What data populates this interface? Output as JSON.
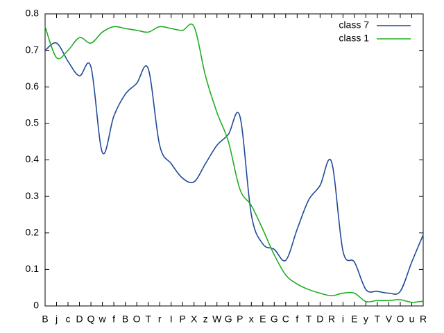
{
  "chart_data": {
    "type": "line",
    "categories": [
      "B",
      "j",
      "c",
      "D",
      "Q",
      "w",
      "f",
      "B",
      "O",
      "T",
      "r",
      "I",
      "P",
      "X",
      "z",
      "W",
      "G",
      "P",
      "x",
      "E",
      "G",
      "C",
      "f",
      "T",
      "D",
      "R",
      "i",
      "E",
      "y",
      "T",
      "V",
      "O",
      "u",
      "R"
    ],
    "series": [
      {
        "name": "class 7",
        "color": "#1f4a96",
        "values": [
          0.7,
          0.72,
          0.67,
          0.63,
          0.655,
          0.42,
          0.52,
          0.58,
          0.61,
          0.65,
          0.44,
          0.39,
          0.35,
          0.34,
          0.39,
          0.44,
          0.47,
          0.52,
          0.25,
          0.17,
          0.155,
          0.125,
          0.21,
          0.29,
          0.33,
          0.395,
          0.15,
          0.12,
          0.045,
          0.04,
          0.035,
          0.04,
          0.12,
          0.195
        ]
      },
      {
        "name": "class 1",
        "color": "#1fae1f",
        "values": [
          0.765,
          0.68,
          0.7,
          0.735,
          0.72,
          0.75,
          0.765,
          0.76,
          0.755,
          0.75,
          0.765,
          0.76,
          0.755,
          0.765,
          0.63,
          0.53,
          0.45,
          0.32,
          0.275,
          0.21,
          0.14,
          0.085,
          0.06,
          0.045,
          0.035,
          0.028,
          0.035,
          0.035,
          0.012,
          0.015,
          0.015,
          0.017,
          0.01,
          0.013
        ]
      }
    ],
    "ylim": [
      0,
      0.8
    ],
    "yticks": [
      0,
      0.1,
      0.2,
      0.3,
      0.4,
      0.5,
      0.6,
      0.7,
      0.8
    ],
    "legend": "top-right"
  }
}
